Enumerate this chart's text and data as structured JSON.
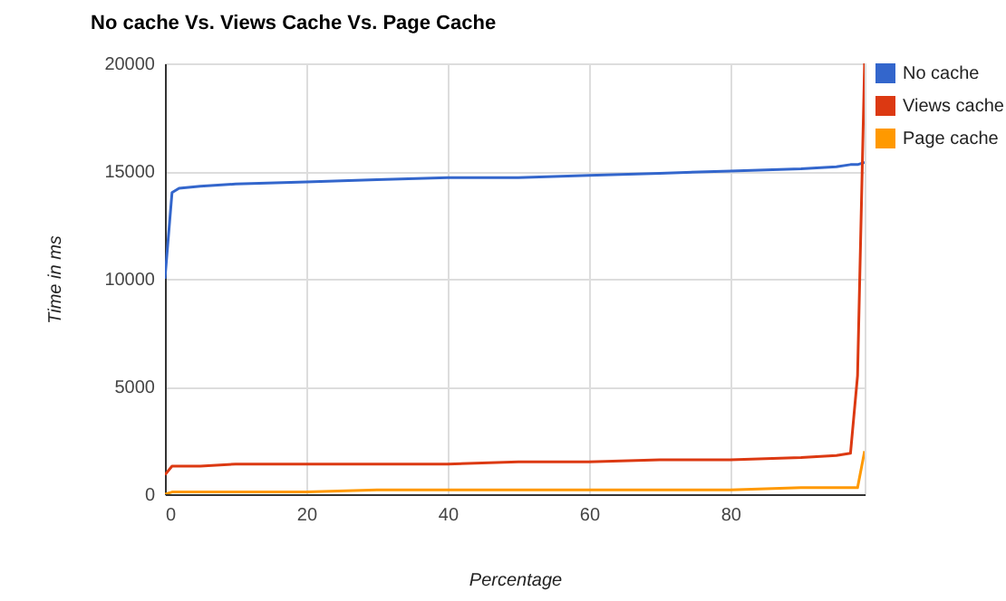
{
  "chart_data": {
    "type": "line",
    "title": "No cache Vs. Views Cache Vs. Page Cache",
    "xlabel": "Percentage",
    "ylabel": "Time in ms",
    "x": [
      0,
      1,
      2,
      5,
      10,
      20,
      30,
      40,
      50,
      60,
      70,
      80,
      90,
      95,
      97,
      98,
      99
    ],
    "series": [
      {
        "name": "No cache",
        "color": "#3366cc",
        "values": [
          10000,
          14000,
          14200,
          14300,
          14400,
          14500,
          14600,
          14700,
          14700,
          14800,
          14900,
          15000,
          15100,
          15200,
          15300,
          15300,
          15400
        ]
      },
      {
        "name": "Views cache",
        "color": "#dc3912",
        "values": [
          900,
          1300,
          1300,
          1300,
          1400,
          1400,
          1400,
          1400,
          1500,
          1500,
          1600,
          1600,
          1700,
          1800,
          1900,
          5500,
          20000
        ]
      },
      {
        "name": "Page cache",
        "color": "#ff9900",
        "values": [
          0,
          100,
          100,
          100,
          100,
          100,
          200,
          200,
          200,
          200,
          200,
          200,
          300,
          300,
          300,
          300,
          2000
        ]
      }
    ],
    "xlim": [
      0,
      99
    ],
    "xticks": [
      0,
      20,
      40,
      60,
      80
    ],
    "ylim": [
      0,
      20000
    ],
    "yticks": [
      0,
      5000,
      10000,
      15000,
      20000
    ],
    "grid": true,
    "legend": "right",
    "marker": "none",
    "line_style": "solid"
  }
}
